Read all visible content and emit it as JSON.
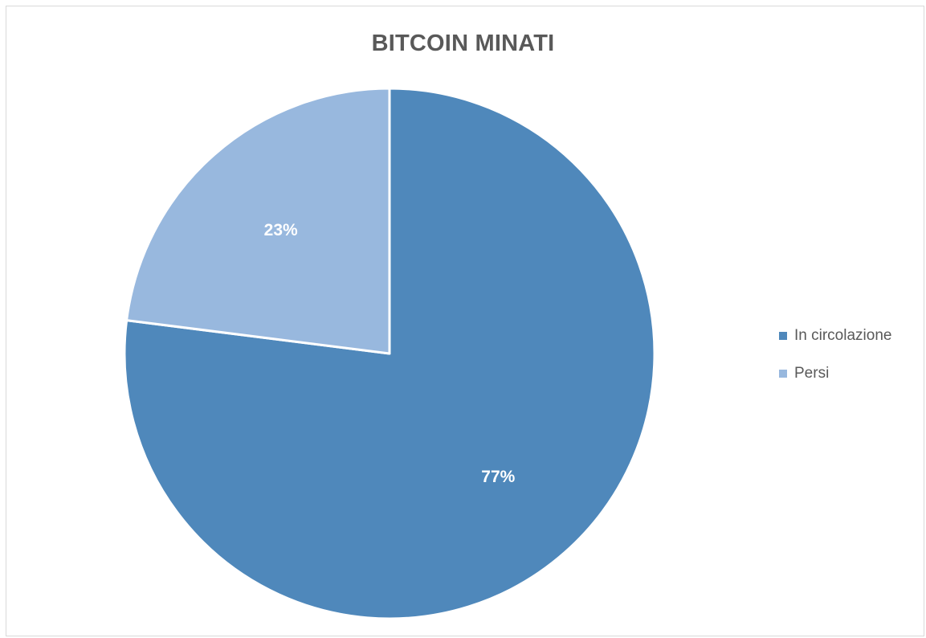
{
  "chart_data": {
    "type": "pie",
    "title": "BITCOIN MINATI",
    "slices": [
      {
        "name": "In circolazione",
        "value": 77,
        "label": "77%",
        "color": "#4f88bb"
      },
      {
        "name": "Persi",
        "value": 23,
        "label": "23%",
        "color": "#98b8de"
      }
    ],
    "start_angle": "12 o'clock",
    "direction": "clockwise",
    "legend_position": "right",
    "slice_border_color": "#ffffff"
  }
}
